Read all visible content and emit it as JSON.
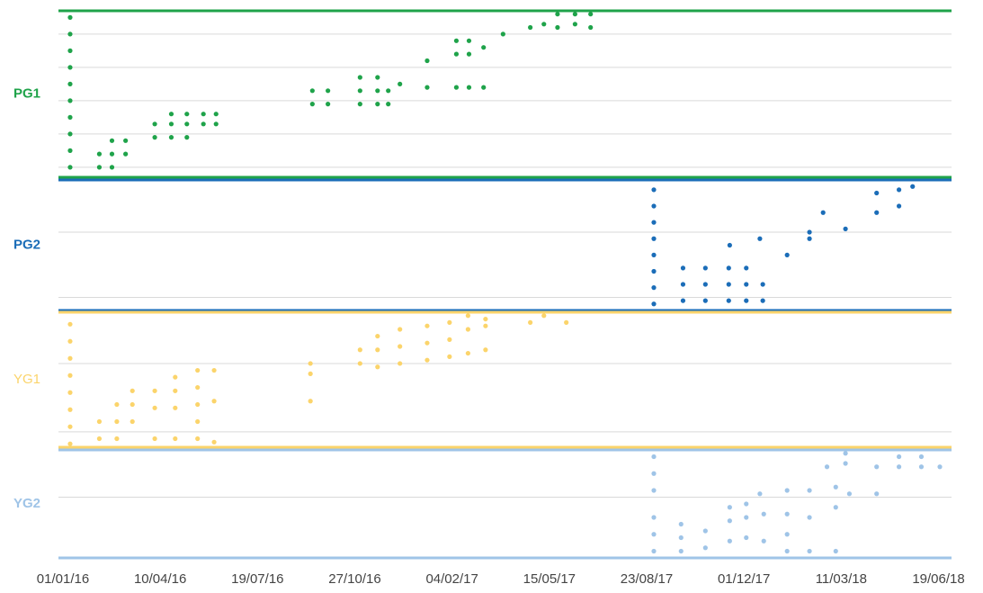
{
  "chart_data": [
    {
      "type": "scatter",
      "ylabel": "PG1",
      "color": "#1fa34a",
      "label_bold": true,
      "xlim": [
        "20/12/15",
        "25/06/18"
      ],
      "ylim": [
        -0.3,
        4.7
      ],
      "ygrid": [
        0,
        1,
        2,
        3,
        4
      ],
      "x": [
        "01/01/16",
        "01/01/16",
        "01/01/16",
        "01/01/16",
        "01/01/16",
        "01/01/16",
        "01/01/16",
        "01/01/16",
        "01/01/16",
        "01/01/16",
        "31/01/16",
        "31/01/16",
        "13/02/16",
        "13/02/16",
        "13/02/16",
        "27/02/16",
        "27/02/16",
        "28/03/16",
        "28/03/16",
        "14/04/16",
        "14/04/16",
        "14/04/16",
        "30/04/16",
        "30/04/16",
        "30/04/16",
        "17/05/16",
        "17/05/16",
        "30/05/16",
        "30/05/16",
        "06/09/16",
        "06/09/16",
        "22/09/16",
        "22/09/16",
        "25/10/16",
        "25/10/16",
        "25/10/16",
        "12/11/16",
        "12/11/16",
        "12/11/16",
        "23/11/16",
        "23/11/16",
        "05/12/16",
        "02/01/17",
        "02/01/17",
        "01/02/17",
        "01/02/17",
        "01/02/17",
        "14/02/17",
        "14/02/17",
        "14/02/17",
        "01/03/17",
        "01/03/17",
        "21/03/17",
        "18/04/17",
        "02/05/17",
        "16/05/17",
        "16/05/17",
        "03/06/17",
        "03/06/17",
        "19/06/17",
        "19/06/17"
      ],
      "values": [
        0,
        0.5,
        1,
        1.5,
        2,
        2.5,
        3,
        3.5,
        4,
        4.5,
        0,
        0.4,
        0,
        0.4,
        0.8,
        0.4,
        0.8,
        0.9,
        1.3,
        0.9,
        1.3,
        1.6,
        1.3,
        1.6,
        0.9,
        1.3,
        1.6,
        1.3,
        1.6,
        1.9,
        2.3,
        1.9,
        2.3,
        1.9,
        2.3,
        2.7,
        1.9,
        2.3,
        2.7,
        1.9,
        2.3,
        2.5,
        2.4,
        3.2,
        2.4,
        3.4,
        3.8,
        2.4,
        3.4,
        3.8,
        2.4,
        3.6,
        4.0,
        4.2,
        4.3,
        4.2,
        4.6,
        4.3,
        4.6,
        4.2,
        4.6
      ]
    },
    {
      "type": "scatter",
      "ylabel": "PG2",
      "color": "#1b6db8",
      "label_bold": true,
      "xlim": [
        "20/12/15",
        "25/06/18"
      ],
      "ylim": [
        -0.4,
        3.6
      ],
      "ygrid": [
        0,
        2
      ],
      "x": [
        "23/08/17",
        "23/08/17",
        "23/08/17",
        "23/08/17",
        "23/08/17",
        "23/08/17",
        "23/08/17",
        "23/08/17",
        "22/09/17",
        "22/09/17",
        "22/09/17",
        "15/10/17",
        "15/10/17",
        "15/10/17",
        "08/11/17",
        "08/11/17",
        "08/11/17",
        "26/11/17",
        "26/11/17",
        "26/11/17",
        "13/12/17",
        "13/12/17",
        "09/11/17",
        "10/12/17",
        "07/01/18",
        "30/01/18",
        "30/01/18",
        "08/03/18",
        "13/02/18",
        "09/04/18",
        "09/04/18",
        "02/05/18",
        "02/05/18",
        "16/05/18"
      ],
      "values": [
        -0.2,
        0.3,
        0.8,
        1.3,
        1.8,
        2.3,
        2.8,
        3.3,
        -0.1,
        0.4,
        0.9,
        -0.1,
        0.4,
        0.9,
        -0.1,
        0.4,
        0.9,
        -0.1,
        0.4,
        0.9,
        -0.1,
        0.4,
        1.6,
        1.8,
        1.3,
        1.8,
        2.0,
        2.1,
        2.6,
        2.6,
        3.2,
        2.8,
        3.3,
        3.4
      ]
    },
    {
      "type": "scatter",
      "ylabel": "YG1",
      "color": "#fbd46b",
      "label_bold": false,
      "xlim": [
        "20/12/15",
        "25/06/18"
      ],
      "ylim": [
        -0.45,
        3.5
      ],
      "ygrid": [
        0,
        2
      ],
      "x": [
        "01/01/16",
        "01/01/16",
        "01/01/16",
        "01/01/16",
        "01/01/16",
        "01/01/16",
        "01/01/16",
        "01/01/16",
        "31/01/16",
        "31/01/16",
        "18/02/16",
        "18/02/16",
        "18/02/16",
        "05/03/16",
        "05/03/16",
        "05/03/16",
        "28/03/16",
        "28/03/16",
        "28/03/16",
        "18/04/16",
        "18/04/16",
        "18/04/16",
        "18/04/16",
        "11/05/16",
        "11/05/16",
        "11/05/16",
        "11/05/16",
        "11/05/16",
        "28/05/16",
        "28/05/16",
        "28/05/16",
        "04/09/16",
        "04/09/16",
        "04/09/16",
        "25/10/16",
        "25/10/16",
        "12/11/16",
        "12/11/16",
        "12/11/16",
        "05/12/16",
        "05/12/16",
        "05/12/16",
        "02/01/17",
        "02/01/17",
        "02/01/17",
        "25/01/17",
        "25/01/17",
        "25/01/17",
        "13/02/17",
        "13/02/17",
        "13/02/17",
        "03/03/17",
        "03/03/17",
        "03/03/17",
        "18/04/17",
        "02/05/17",
        "25/05/17"
      ],
      "values": [
        -0.35,
        0.15,
        0.65,
        1.15,
        1.65,
        2.15,
        2.65,
        3.15,
        -0.2,
        0.3,
        -0.2,
        0.3,
        0.8,
        0.3,
        0.8,
        1.2,
        -0.2,
        0.7,
        1.2,
        -0.2,
        0.7,
        1.2,
        1.6,
        -0.2,
        0.3,
        0.8,
        1.3,
        1.8,
        -0.3,
        0.9,
        1.8,
        0.9,
        1.7,
        2.0,
        2.0,
        2.4,
        1.9,
        2.4,
        2.8,
        2.0,
        2.5,
        3.0,
        2.1,
        2.6,
        3.1,
        2.2,
        2.7,
        3.2,
        2.3,
        3.0,
        3.4,
        2.4,
        3.1,
        3.3,
        3.2,
        3.4,
        3.2
      ]
    },
    {
      "type": "scatter",
      "ylabel": "YG2",
      "color": "#9fc4e7",
      "label_bold": true,
      "xlim": [
        "20/12/15",
        "25/06/18"
      ],
      "ylim": [
        -1.8,
        1.4
      ],
      "ygrid": [
        0
      ],
      "xticks": [
        "01/01/16",
        "10/04/16",
        "19/07/16",
        "27/10/16",
        "04/02/17",
        "15/05/17",
        "23/08/17",
        "01/12/17",
        "11/03/18",
        "19/06/18"
      ],
      "x": [
        "23/08/17",
        "23/08/17",
        "23/08/17",
        "23/08/17",
        "23/08/17",
        "23/08/17",
        "20/09/17",
        "20/09/17",
        "20/09/17",
        "15/10/17",
        "15/10/17",
        "09/11/17",
        "09/11/17",
        "09/11/17",
        "26/11/17",
        "26/11/17",
        "26/11/17",
        "14/12/17",
        "14/12/17",
        "10/12/17",
        "07/01/18",
        "07/01/18",
        "07/01/18",
        "07/01/18",
        "30/01/18",
        "30/01/18",
        "30/01/18",
        "26/02/18",
        "26/02/18",
        "26/02/18",
        "12/03/18",
        "17/02/18",
        "08/03/18",
        "08/03/18",
        "09/04/18",
        "09/04/18",
        "02/05/18",
        "02/05/18",
        "25/05/18",
        "25/05/18",
        "13/06/18"
      ],
      "values": [
        -1.6,
        -1.1,
        -0.6,
        0.2,
        0.7,
        1.2,
        -0.8,
        -1.2,
        -1.6,
        -1.0,
        -1.5,
        -0.3,
        -0.7,
        -1.3,
        -0.2,
        -0.6,
        -1.2,
        -0.5,
        -1.3,
        0.1,
        0.2,
        -0.5,
        -1.1,
        -1.6,
        0.2,
        -0.6,
        -1.6,
        0.3,
        -0.3,
        -1.6,
        0.1,
        0.9,
        1.0,
        1.3,
        0.1,
        0.9,
        0.9,
        1.2,
        0.9,
        1.2,
        0.9
      ]
    }
  ]
}
